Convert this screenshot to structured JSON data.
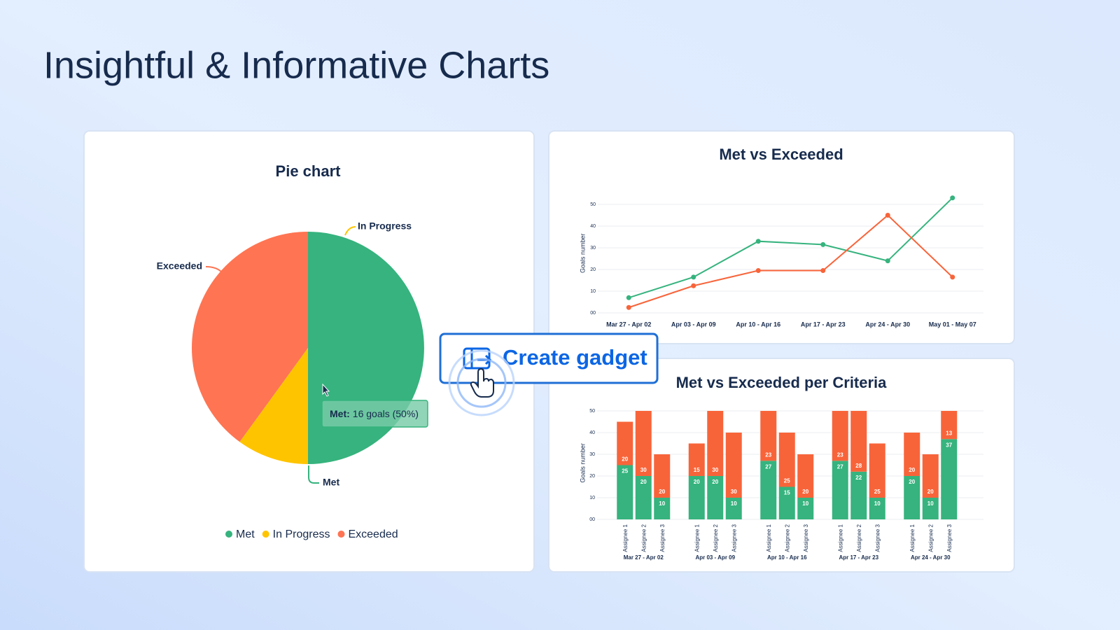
{
  "page": {
    "title": "Insightful & Informative Charts"
  },
  "button": {
    "label": "Create gadget"
  },
  "tooltip": {
    "label": "Met:",
    "text": "16 goals (50%)"
  },
  "chart_data": [
    {
      "type": "pie",
      "title": "Pie chart",
      "categories": [
        "Met",
        "In Progress",
        "Exceeded"
      ],
      "values": [
        50,
        10,
        40
      ],
      "colors": [
        "#36b37e",
        "#ffc400",
        "#ff7452"
      ],
      "legend": "bottom"
    },
    {
      "type": "line",
      "title": "Met vs Exceeded",
      "y_label": "Goals number",
      "categories": [
        "Mar 27 - Apr 02",
        "Apr 03 - Apr 09",
        "Apr 10 - Apr 16",
        "Apr 17 - Apr 23",
        "Apr 24 - Apr 30",
        "May 01 - May 07"
      ],
      "series": [
        {
          "color": "#36b37e",
          "values": [
            7,
            16.5,
            33,
            31.5,
            24,
            53
          ]
        },
        {
          "color": "#f8643a",
          "values": [
            2.5,
            12.5,
            19.5,
            19.5,
            45,
            16.5
          ]
        }
      ],
      "ylim": [
        0,
        55
      ],
      "yticks": [
        {
          "value": 0,
          "label": "00"
        },
        10,
        20,
        30,
        40,
        50
      ],
      "grid": true
    },
    {
      "type": "stacked-bar",
      "title": "Met vs Exceeded per Criteria",
      "y_label": "Goals number",
      "groups": [
        {
          "name": "Mar 27 - Apr 02",
          "categories": [
            "Assignee 1",
            "Assignee 2",
            "Assignee 3"
          ]
        },
        {
          "name": "Apr 03 - Apr 09",
          "categories": [
            "Assignee 1",
            "Assignee 2",
            "Assignee 3"
          ]
        },
        {
          "name": "Apr 10 - Apr 16",
          "categories": [
            "Assignee 1",
            "Assignee 2",
            "Assignee 3"
          ]
        },
        {
          "name": "Apr 17 - Apr 23",
          "categories": [
            "Assignee 1",
            "Assignee 2",
            "Assignee 3"
          ]
        },
        {
          "name": "Apr 24 - Apr 30",
          "categories": [
            "Assignee 1",
            "Assignee 2",
            "Assignee 3"
          ]
        }
      ],
      "series": [
        {
          "color": "#36b37e",
          "values": [
            25,
            20,
            10,
            20,
            20,
            10,
            27,
            15,
            10,
            27,
            22,
            10,
            20,
            10,
            37
          ]
        },
        {
          "color": "#f8643a",
          "values": [
            20,
            30,
            20,
            15,
            30,
            30,
            23,
            25,
            20,
            23,
            28,
            25,
            20,
            20,
            13
          ]
        }
      ],
      "ylim": [
        0,
        52
      ],
      "yticks": [
        {
          "value": 0,
          "label": "00"
        },
        10,
        20,
        30,
        40,
        50
      ],
      "grid": true
    }
  ]
}
